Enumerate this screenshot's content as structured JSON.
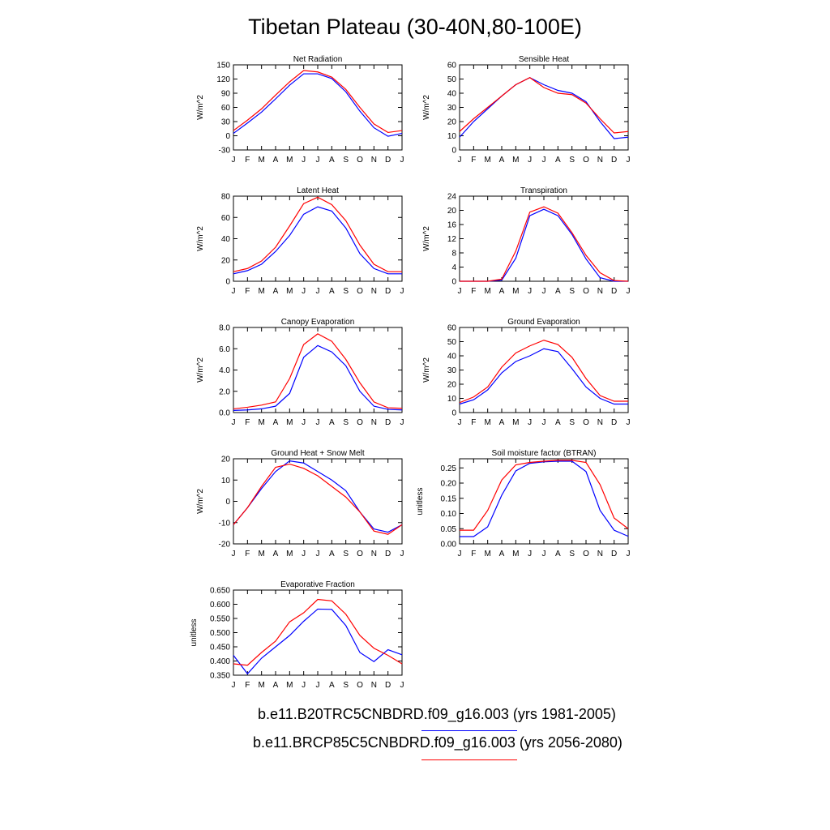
{
  "title": "Tibetan Plateau (30-40N,80-100E)",
  "colors": {
    "historical": "#0000ff",
    "future": "#ff0000"
  },
  "legend": [
    {
      "label": "b.e11.B20TRC5CNBDRD.f09_g16.003 (yrs 1981-2005)",
      "color": "#0000ff"
    },
    {
      "label": "b.e11.BRCP85C5CNBDRD.f09_g16.003 (yrs 2056-2080)",
      "color": "#ff0000"
    }
  ],
  "chart_data": [
    {
      "type": "line",
      "title": "Net Radiation",
      "ylabel": "W/m^2",
      "x": [
        "J",
        "F",
        "M",
        "A",
        "M",
        "J",
        "J",
        "A",
        "S",
        "O",
        "N",
        "D",
        "J"
      ],
      "ylim": [
        -30,
        150
      ],
      "yticks": [
        "-30",
        "0",
        "30",
        "60",
        "90",
        "120",
        "150"
      ],
      "grid": false,
      "series": [
        {
          "color": "#0000ff",
          "values": [
            5,
            27,
            50,
            78,
            107,
            131,
            131,
            121,
            93,
            52,
            17,
            -1,
            5
          ]
        },
        {
          "color": "#ff0000",
          "values": [
            11,
            33,
            57,
            86,
            114,
            138,
            135,
            124,
            98,
            60,
            25,
            7,
            11
          ]
        }
      ]
    },
    {
      "type": "line",
      "title": "Sensible Heat",
      "ylabel": "W/m^2",
      "x": [
        "J",
        "F",
        "M",
        "A",
        "M",
        "J",
        "J",
        "A",
        "S",
        "O",
        "N",
        "D",
        "J"
      ],
      "ylim": [
        0,
        60
      ],
      "yticks": [
        "0",
        "10",
        "20",
        "30",
        "40",
        "50",
        "60"
      ],
      "grid": false,
      "series": [
        {
          "color": "#0000ff",
          "values": [
            9,
            20,
            29,
            38,
            46,
            51,
            46,
            42,
            40,
            34,
            20,
            8,
            9
          ]
        },
        {
          "color": "#ff0000",
          "values": [
            13,
            22,
            30,
            38,
            46,
            51,
            44,
            40,
            39,
            33,
            22,
            12,
            13
          ]
        }
      ]
    },
    {
      "type": "line",
      "title": "Latent Heat",
      "ylabel": "W/m^2",
      "x": [
        "J",
        "F",
        "M",
        "A",
        "M",
        "J",
        "J",
        "A",
        "S",
        "O",
        "N",
        "D",
        "J"
      ],
      "ylim": [
        0,
        80
      ],
      "yticks": [
        "0",
        "20",
        "40",
        "60",
        "80"
      ],
      "grid": false,
      "series": [
        {
          "color": "#0000ff",
          "values": [
            7,
            10,
            16,
            28,
            43,
            63,
            70,
            66,
            50,
            26,
            12,
            7,
            7
          ]
        },
        {
          "color": "#ff0000",
          "values": [
            9,
            12,
            19,
            32,
            52,
            73,
            79,
            72,
            57,
            34,
            16,
            9,
            9
          ]
        }
      ]
    },
    {
      "type": "line",
      "title": "Transpiration",
      "ylabel": "W/m^2",
      "x": [
        "J",
        "F",
        "M",
        "A",
        "M",
        "J",
        "J",
        "A",
        "S",
        "O",
        "N",
        "D",
        "J"
      ],
      "ylim": [
        0,
        24
      ],
      "yticks": [
        "0",
        "4",
        "8",
        "12",
        "16",
        "20",
        "24"
      ],
      "grid": false,
      "series": [
        {
          "color": "#0000ff",
          "values": [
            0,
            0,
            0,
            0.3,
            6.5,
            18.5,
            20.3,
            18.5,
            13.2,
            6.3,
            1,
            0,
            0
          ]
        },
        {
          "color": "#ff0000",
          "values": [
            0,
            0,
            0,
            0.6,
            8.5,
            19.5,
            21,
            19.2,
            13.7,
            7.3,
            2.4,
            0.2,
            0
          ]
        }
      ]
    },
    {
      "type": "line",
      "title": "Canopy Evaporation",
      "ylabel": "W/m^2",
      "x": [
        "J",
        "F",
        "M",
        "A",
        "M",
        "J",
        "J",
        "A",
        "S",
        "O",
        "N",
        "D",
        "J"
      ],
      "ylim": [
        0,
        8
      ],
      "yticks": [
        "0.0",
        "2.0",
        "4.0",
        "6.0",
        "8.0"
      ],
      "grid": false,
      "series": [
        {
          "color": "#0000ff",
          "values": [
            0.2,
            0.25,
            0.35,
            0.6,
            1.8,
            5.2,
            6.3,
            5.7,
            4.4,
            2.0,
            0.6,
            0.3,
            0.25
          ]
        },
        {
          "color": "#ff0000",
          "values": [
            0.35,
            0.5,
            0.7,
            1.0,
            3.2,
            6.4,
            7.4,
            6.7,
            5.0,
            2.8,
            1.0,
            0.45,
            0.4
          ]
        }
      ]
    },
    {
      "type": "line",
      "title": "Ground Evaporation",
      "ylabel": "W/m^2",
      "x": [
        "J",
        "F",
        "M",
        "A",
        "M",
        "J",
        "J",
        "A",
        "S",
        "O",
        "N",
        "D",
        "J"
      ],
      "ylim": [
        0,
        60
      ],
      "yticks": [
        "0",
        "10",
        "20",
        "30",
        "40",
        "50",
        "60"
      ],
      "grid": false,
      "series": [
        {
          "color": "#0000ff",
          "values": [
            6,
            9,
            16,
            28,
            36,
            40,
            45,
            43,
            31,
            18,
            10,
            6,
            6
          ]
        },
        {
          "color": "#ff0000",
          "values": [
            7,
            11,
            18,
            32,
            42,
            47,
            51,
            48,
            39,
            24,
            12,
            8,
            8
          ]
        }
      ]
    },
    {
      "type": "line",
      "title": "Ground Heat + Snow Melt",
      "ylabel": "W/m^2",
      "x": [
        "J",
        "F",
        "M",
        "A",
        "M",
        "J",
        "J",
        "A",
        "S",
        "O",
        "N",
        "D",
        "J"
      ],
      "ylim": [
        -20,
        20
      ],
      "yticks": [
        "-20",
        "-10",
        "0",
        "10",
        "20"
      ],
      "grid": false,
      "series": [
        {
          "color": "#0000ff",
          "values": [
            -11,
            -3,
            6,
            14,
            19,
            18,
            14,
            10,
            5,
            -5,
            -13,
            -14.5,
            -11
          ]
        },
        {
          "color": "#ff0000",
          "values": [
            -11,
            -3,
            7,
            16,
            17.5,
            15.5,
            12,
            7,
            2,
            -5,
            -14,
            -15.5,
            -11
          ]
        }
      ]
    },
    {
      "type": "line",
      "title": "Soil moisture factor (BTRAN)",
      "ylabel": "unitless",
      "x": [
        "J",
        "F",
        "M",
        "A",
        "M",
        "J",
        "J",
        "A",
        "S",
        "O",
        "N",
        "D",
        "J"
      ],
      "ylim": [
        0,
        0.28
      ],
      "yticks": [
        "0.00",
        "0.05",
        "0.10",
        "0.15",
        "0.20",
        "0.25"
      ],
      "grid": false,
      "series": [
        {
          "color": "#0000ff",
          "values": [
            0.024,
            0.024,
            0.056,
            0.16,
            0.24,
            0.265,
            0.27,
            0.272,
            0.272,
            0.238,
            0.11,
            0.045,
            0.025
          ]
        },
        {
          "color": "#ff0000",
          "values": [
            0.045,
            0.045,
            0.11,
            0.21,
            0.26,
            0.268,
            0.272,
            0.275,
            0.275,
            0.268,
            0.195,
            0.085,
            0.05
          ]
        }
      ]
    },
    {
      "type": "line",
      "title": "Evaporative Fraction",
      "ylabel": "unitless",
      "x": [
        "J",
        "F",
        "M",
        "A",
        "M",
        "J",
        "J",
        "A",
        "S",
        "O",
        "N",
        "D",
        "J"
      ],
      "ylim": [
        0.35,
        0.65
      ],
      "yticks": [
        "0.350",
        "0.400",
        "0.450",
        "0.500",
        "0.550",
        "0.600",
        "0.650"
      ],
      "grid": false,
      "series": [
        {
          "color": "#0000ff",
          "values": [
            0.42,
            0.355,
            0.41,
            0.45,
            0.49,
            0.54,
            0.583,
            0.582,
            0.525,
            0.43,
            0.398,
            0.44,
            0.422
          ]
        },
        {
          "color": "#ff0000",
          "values": [
            0.39,
            0.385,
            0.43,
            0.47,
            0.538,
            0.57,
            0.617,
            0.612,
            0.565,
            0.49,
            0.445,
            0.42,
            0.39
          ]
        }
      ]
    }
  ]
}
